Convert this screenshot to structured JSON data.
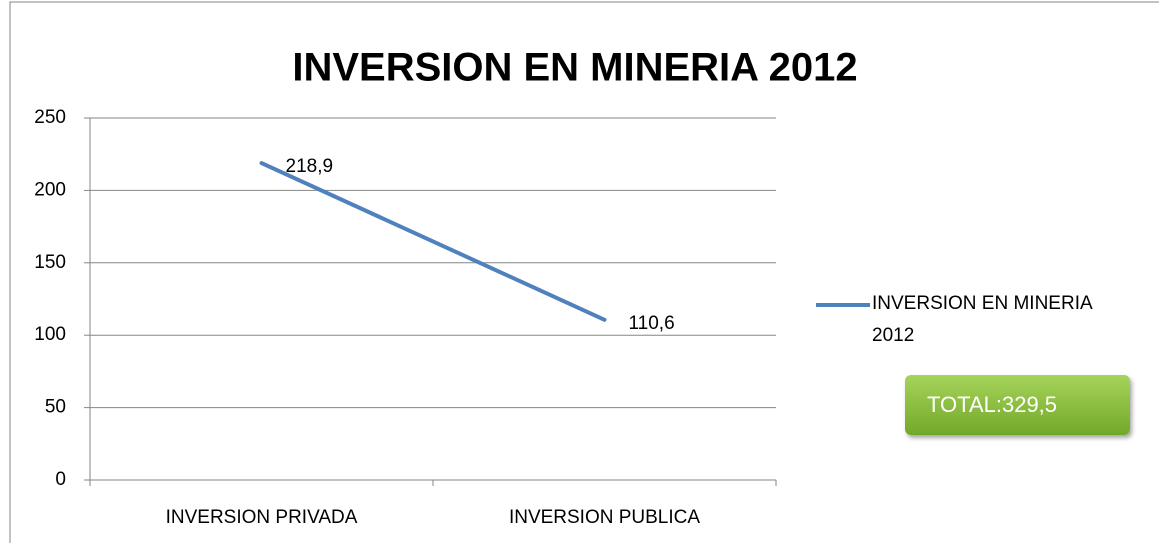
{
  "chart_data": {
    "type": "line",
    "title": "INVERSION EN MINERIA 2012",
    "categories": [
      "INVERSION PRIVADA",
      "INVERSION PUBLICA"
    ],
    "series": [
      {
        "name": "INVERSION EN MINERIA 2012",
        "color": "#4f81bd",
        "values": [
          218.9,
          110.6
        ],
        "value_labels": [
          "218,9",
          "110,6"
        ]
      }
    ],
    "ylim": [
      0,
      250
    ],
    "yticks": [
      0,
      50,
      100,
      150,
      200,
      250
    ],
    "grid": true,
    "legend": "right",
    "annotation": "TOTAL:329,5"
  }
}
